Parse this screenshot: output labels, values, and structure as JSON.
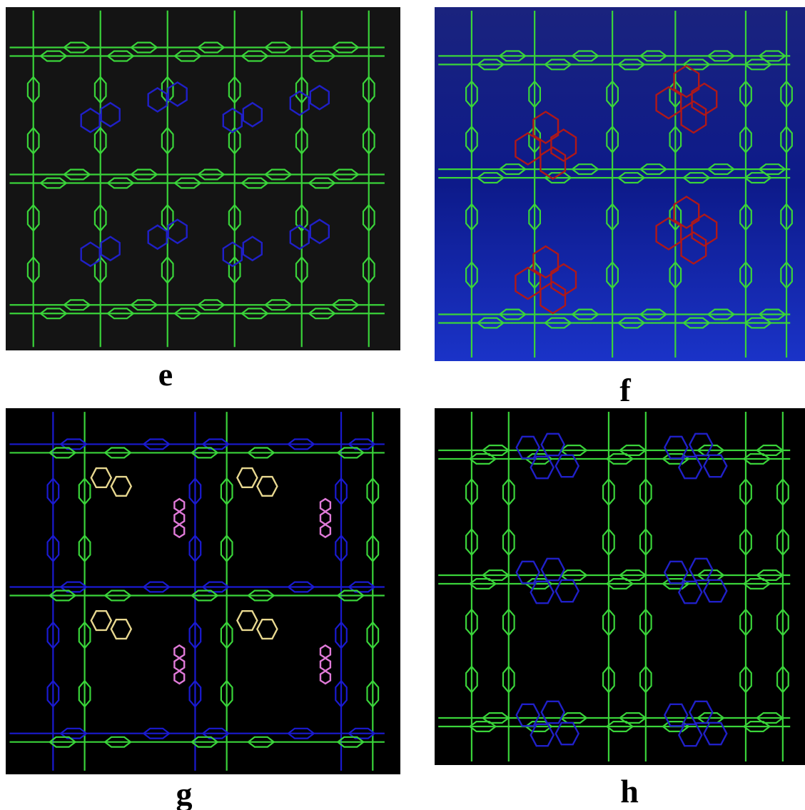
{
  "panels": [
    {
      "label": "e"
    },
    {
      "label": "f"
    },
    {
      "label": "g"
    },
    {
      "label": "h"
    }
  ]
}
